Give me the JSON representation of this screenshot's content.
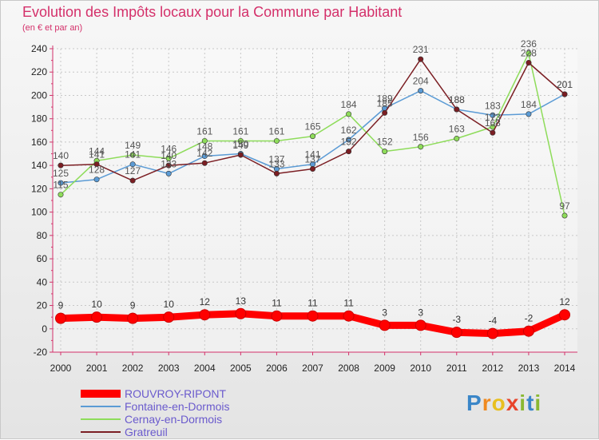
{
  "title": "Evolution des Impôts locaux pour la Commune par Habitant",
  "subtitle": "(en € et par an)",
  "brand": {
    "letters": [
      "P",
      "r",
      "o",
      "x",
      "i",
      "t",
      "i"
    ]
  },
  "chart_data": {
    "type": "line",
    "title": "Evolution des Impôts locaux pour la Commune par Habitant",
    "subtitle": "(en € et par an)",
    "xlabel": "",
    "ylabel": "",
    "ylim": [
      -20,
      240
    ],
    "yticks": [
      -20,
      0,
      20,
      40,
      60,
      80,
      100,
      120,
      140,
      160,
      180,
      200,
      220,
      240
    ],
    "grid": true,
    "legend_position": "bottom-left",
    "categories": [
      "2000",
      "2001",
      "2002",
      "2003",
      "2004",
      "2005",
      "2006",
      "2007",
      "2008",
      "2009",
      "2010",
      "2011",
      "2012",
      "2013",
      "2014"
    ],
    "series": [
      {
        "name": "ROUVROY-RIPONT",
        "color": "#ff0000",
        "values": [
          9,
          10,
          9,
          10,
          12,
          13,
          11,
          11,
          11,
          3,
          3,
          -3,
          -4,
          -2,
          12
        ]
      },
      {
        "name": "Fontaine-en-Dormois",
        "color": "#5b9bd5",
        "values": [
          125,
          128,
          141,
          133,
          148,
          150,
          137,
          141,
          162,
          189,
          204,
          188,
          183,
          184,
          201
        ]
      },
      {
        "name": "Cernay-en-Dormois",
        "color": "#8edc5a",
        "values": [
          115,
          144,
          149,
          146,
          161,
          161,
          161,
          165,
          184,
          152,
          156,
          163,
          173,
          236,
          97
        ]
      },
      {
        "name": "Gratreuil",
        "color": "#7b1e23",
        "values": [
          140,
          141,
          127,
          140,
          142,
          149,
          133,
          137,
          152,
          185,
          231,
          188,
          168,
          228,
          201
        ]
      }
    ]
  }
}
